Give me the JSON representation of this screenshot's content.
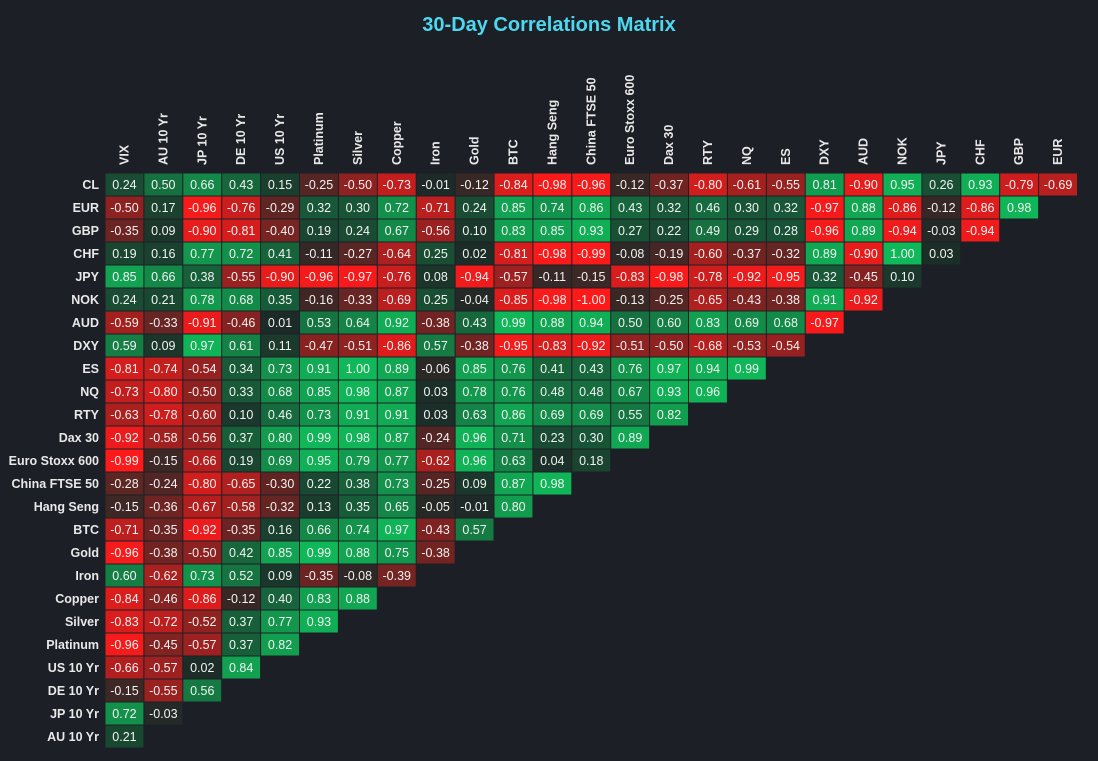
{
  "chart_data": {
    "type": "heatmap",
    "title": "30-Day Correlations Matrix",
    "columns": [
      "VIX",
      "AU 10 Yr",
      "JP 10 Yr",
      "DE 10 Yr",
      "US 10 Yr",
      "Platinum",
      "Silver",
      "Copper",
      "Iron",
      "Gold",
      "BTC",
      "Hang Seng",
      "China FTSE 50",
      "Euro Stoxx 600",
      "Dax 30",
      "RTY",
      "NQ",
      "ES",
      "DXY",
      "AUD",
      "NOK",
      "JPY",
      "CHF",
      "GBP",
      "EUR"
    ],
    "rows": [
      "CL",
      "EUR",
      "GBP",
      "CHF",
      "JPY",
      "NOK",
      "AUD",
      "DXY",
      "ES",
      "NQ",
      "RTY",
      "Dax 30",
      "Euro Stoxx 600",
      "China FTSE 50",
      "Hang Seng",
      "BTC",
      "Gold",
      "Iron",
      "Copper",
      "Silver",
      "Platinum",
      "US 10 Yr",
      "DE 10 Yr",
      "JP 10 Yr",
      "AU 10 Yr"
    ],
    "values": [
      [
        0.24,
        0.5,
        0.66,
        0.43,
        0.15,
        -0.25,
        -0.5,
        -0.73,
        -0.01,
        -0.12,
        -0.84,
        -0.98,
        -0.96,
        -0.12,
        -0.37,
        -0.8,
        -0.61,
        -0.55,
        0.81,
        -0.9,
        0.95,
        0.26,
        0.93,
        -0.79,
        -0.69
      ],
      [
        -0.5,
        0.17,
        -0.96,
        -0.76,
        -0.29,
        0.32,
        0.3,
        0.72,
        -0.71,
        0.24,
        0.85,
        0.74,
        0.86,
        0.43,
        0.32,
        0.46,
        0.3,
        0.32,
        -0.97,
        0.88,
        -0.86,
        -0.12,
        -0.86,
        0.98
      ],
      [
        -0.35,
        0.09,
        -0.9,
        -0.81,
        -0.4,
        0.19,
        0.24,
        0.67,
        -0.56,
        0.1,
        0.83,
        0.85,
        0.93,
        0.27,
        0.22,
        0.49,
        0.29,
        0.28,
        -0.96,
        0.89,
        -0.94,
        -0.03,
        -0.94
      ],
      [
        0.19,
        0.16,
        0.77,
        0.72,
        0.41,
        -0.11,
        -0.27,
        -0.64,
        0.25,
        0.02,
        -0.81,
        -0.98,
        -0.99,
        -0.08,
        -0.19,
        -0.6,
        -0.37,
        -0.32,
        0.89,
        -0.9,
        1.0,
        0.03
      ],
      [
        0.85,
        0.66,
        0.38,
        -0.55,
        -0.9,
        -0.96,
        -0.97,
        -0.76,
        0.08,
        -0.94,
        -0.57,
        -0.11,
        -0.15,
        -0.83,
        -0.98,
        -0.78,
        -0.92,
        -0.95,
        0.32,
        -0.45,
        0.1
      ],
      [
        0.24,
        0.21,
        0.78,
        0.68,
        0.35,
        -0.16,
        -0.33,
        -0.69,
        0.25,
        -0.04,
        -0.85,
        -0.98,
        -1.0,
        -0.13,
        -0.25,
        -0.65,
        -0.43,
        -0.38,
        0.91,
        -0.92
      ],
      [
        -0.59,
        -0.33,
        -0.91,
        -0.46,
        0.01,
        0.53,
        0.64,
        0.92,
        -0.38,
        0.43,
        0.99,
        0.88,
        0.94,
        0.5,
        0.6,
        0.83,
        0.69,
        0.68,
        -0.97
      ],
      [
        0.59,
        0.09,
        0.97,
        0.61,
        0.11,
        -0.47,
        -0.51,
        -0.86,
        0.57,
        -0.38,
        -0.95,
        -0.83,
        -0.92,
        -0.51,
        -0.5,
        -0.68,
        -0.53,
        -0.54
      ],
      [
        -0.81,
        -0.74,
        -0.54,
        0.34,
        0.73,
        0.91,
        1.0,
        0.89,
        -0.06,
        0.85,
        0.76,
        0.41,
        0.43,
        0.76,
        0.97,
        0.94,
        0.99
      ],
      [
        -0.73,
        -0.8,
        -0.5,
        0.33,
        0.68,
        0.85,
        0.98,
        0.87,
        0.03,
        0.78,
        0.76,
        0.48,
        0.48,
        0.67,
        0.93,
        0.96
      ],
      [
        -0.63,
        -0.78,
        -0.6,
        0.1,
        0.46,
        0.73,
        0.91,
        0.91,
        0.03,
        0.63,
        0.86,
        0.69,
        0.69,
        0.55,
        0.82
      ],
      [
        -0.92,
        -0.58,
        -0.56,
        0.37,
        0.8,
        0.99,
        0.98,
        0.87,
        -0.24,
        0.96,
        0.71,
        0.23,
        0.3,
        0.89
      ],
      [
        -0.99,
        -0.15,
        -0.66,
        0.19,
        0.69,
        0.95,
        0.79,
        0.77,
        -0.62,
        0.96,
        0.63,
        0.04,
        0.18
      ],
      [
        -0.28,
        -0.24,
        -0.8,
        -0.65,
        -0.3,
        0.22,
        0.38,
        0.73,
        -0.25,
        0.09,
        0.87,
        0.98
      ],
      [
        -0.15,
        -0.36,
        -0.67,
        -0.58,
        -0.32,
        0.13,
        0.35,
        0.65,
        -0.05,
        -0.01,
        0.8
      ],
      [
        -0.71,
        -0.35,
        -0.92,
        -0.35,
        0.16,
        0.66,
        0.74,
        0.97,
        -0.43,
        0.57
      ],
      [
        -0.96,
        -0.38,
        -0.5,
        0.42,
        0.85,
        0.99,
        0.88,
        0.75,
        -0.38
      ],
      [
        0.6,
        -0.62,
        0.73,
        0.52,
        0.09,
        -0.35,
        -0.08,
        -0.39
      ],
      [
        -0.84,
        -0.46,
        -0.86,
        -0.12,
        0.4,
        0.83,
        0.88
      ],
      [
        -0.83,
        -0.72,
        -0.52,
        0.37,
        0.77,
        0.93
      ],
      [
        -0.96,
        -0.45,
        -0.57,
        0.37,
        0.82
      ],
      [
        -0.66,
        -0.57,
        0.02,
        0.84
      ],
      [
        -0.15,
        -0.55,
        0.56
      ],
      [
        0.72,
        -0.03
      ],
      [
        0.21
      ]
    ],
    "color_scale": {
      "negative": "#ff1a1a",
      "neutral": "#1c2a27",
      "positive": "#0fb858"
    },
    "value_range": [
      -1,
      1
    ],
    "legend": "none"
  }
}
